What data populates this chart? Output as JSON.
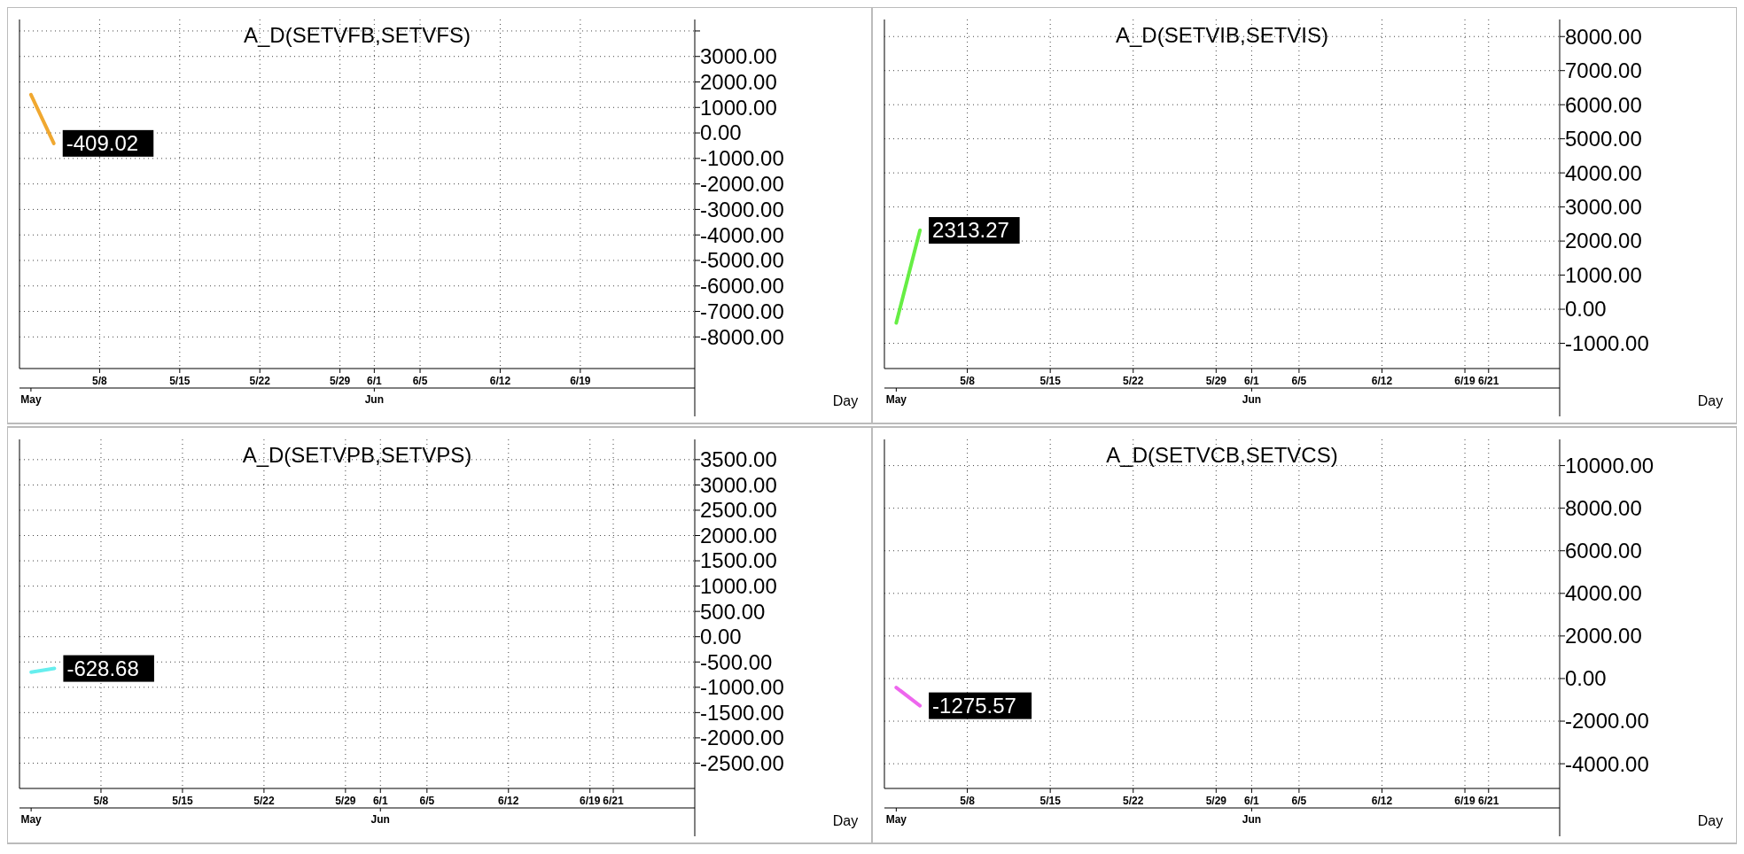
{
  "chart_data": [
    {
      "type": "line",
      "title": "A_D(SETVFB,SETVFS)",
      "xlabel": "Day",
      "x": [
        "--05-02",
        "--05-04"
      ],
      "series": [
        {
          "color": "#f0a830",
          "values": [
            1500,
            -409.02
          ]
        }
      ],
      "xlim": [
        "--05-01",
        "--06-29"
      ],
      "xticks": [
        {
          "value": "--05-08",
          "label": "5/8"
        },
        {
          "value": "--05-15",
          "label": "5/15"
        },
        {
          "value": "--05-22",
          "label": "5/22"
        },
        {
          "value": "--05-29",
          "label": "5/29"
        },
        {
          "value": "--06-01",
          "label": "6/1"
        },
        {
          "value": "--06-05",
          "label": "6/5"
        },
        {
          "value": "--06-12",
          "label": "6/12"
        },
        {
          "value": "--06-19",
          "label": "6/19"
        }
      ],
      "x2lim": [
        "--05-01",
        "--06-29"
      ],
      "x2ticks": [
        {
          "value": "--05-02",
          "label": "May"
        },
        {
          "value": "--06-01",
          "label": "Jun"
        }
      ],
      "ylim": [
        -9240,
        4450
      ],
      "yticks": [
        {
          "value": 4000,
          "label": null
        },
        {
          "value": 3000,
          "label": "3000.00"
        },
        {
          "value": 2000,
          "label": "2000.00"
        },
        {
          "value": 1000,
          "label": "1000.00"
        },
        {
          "value": 0,
          "label": "0.00"
        },
        {
          "value": -1000,
          "label": "-1000.00"
        },
        {
          "value": -2000,
          "label": "-2000.00"
        },
        {
          "value": -3000,
          "label": "-3000.00"
        },
        {
          "value": -4000,
          "label": "-4000.00"
        },
        {
          "value": -5000,
          "label": "-5000.00"
        },
        {
          "value": -6000,
          "label": "-6000.00"
        },
        {
          "value": -7000,
          "label": "-7000.00"
        },
        {
          "value": -8000,
          "label": "-8000.00"
        }
      ],
      "grid": true,
      "annotations": [
        {
          "text": "-409.02",
          "x": "--05-04",
          "y": -409.02
        }
      ]
    },
    {
      "type": "line",
      "title": "A_D(SETVIB,SETVIS)",
      "xlabel": "Day",
      "x": [
        "--05-02",
        "--05-04"
      ],
      "series": [
        {
          "color": "#66ee44",
          "values": [
            -400,
            2313.27
          ]
        }
      ],
      "xlim": [
        "--05-01",
        "--06-27"
      ],
      "xticks": [
        {
          "value": "--05-08",
          "label": "5/8"
        },
        {
          "value": "--05-15",
          "label": "5/15"
        },
        {
          "value": "--05-22",
          "label": "5/22"
        },
        {
          "value": "--05-29",
          "label": "5/29"
        },
        {
          "value": "--06-01",
          "label": "6/1"
        },
        {
          "value": "--06-05",
          "label": "6/5"
        },
        {
          "value": "--06-12",
          "label": "6/12"
        },
        {
          "value": "--06-19",
          "label": "6/19"
        },
        {
          "value": "--06-21",
          "label": "6/21"
        }
      ],
      "x2lim": [
        "--05-01",
        "--06-27"
      ],
      "x2ticks": [
        {
          "value": "--05-02",
          "label": "May"
        },
        {
          "value": "--06-01",
          "label": "Jun"
        }
      ],
      "ylim": [
        -1740,
        8500
      ],
      "yticks": [
        {
          "value": 8000,
          "label": "8000.00"
        },
        {
          "value": 7000,
          "label": "7000.00"
        },
        {
          "value": 6000,
          "label": "6000.00"
        },
        {
          "value": 5000,
          "label": "5000.00"
        },
        {
          "value": 4000,
          "label": "4000.00"
        },
        {
          "value": 3000,
          "label": "3000.00"
        },
        {
          "value": 2000,
          "label": "2000.00"
        },
        {
          "value": 1000,
          "label": "1000.00"
        },
        {
          "value": 0,
          "label": "0.00"
        },
        {
          "value": -1000,
          "label": "-1000.00"
        }
      ],
      "grid": true,
      "annotations": [
        {
          "text": "2313.27",
          "x": "--05-04",
          "y": 2313.27
        }
      ]
    },
    {
      "type": "line",
      "title": "A_D(SETVPB,SETVPS)",
      "xlabel": "Day",
      "x": [
        "--05-02",
        "--05-04"
      ],
      "series": [
        {
          "color": "#66eeee",
          "values": [
            -700,
            -628.68
          ]
        }
      ],
      "xlim": [
        "--05-01",
        "--06-28"
      ],
      "xticks": [
        {
          "value": "--05-08",
          "label": "5/8"
        },
        {
          "value": "--05-15",
          "label": "5/15"
        },
        {
          "value": "--05-22",
          "label": "5/22"
        },
        {
          "value": "--05-29",
          "label": "5/29"
        },
        {
          "value": "--06-01",
          "label": "6/1"
        },
        {
          "value": "--06-05",
          "label": "6/5"
        },
        {
          "value": "--06-12",
          "label": "6/12"
        },
        {
          "value": "--06-19",
          "label": "6/19"
        },
        {
          "value": "--06-21",
          "label": "6/21"
        }
      ],
      "x2lim": [
        "--05-01",
        "--06-28"
      ],
      "x2ticks": [
        {
          "value": "--05-02",
          "label": "May"
        },
        {
          "value": "--06-01",
          "label": "Jun"
        }
      ],
      "ylim": [
        -3000,
        3900
      ],
      "yticks": [
        {
          "value": 3500,
          "label": "3500.00"
        },
        {
          "value": 3000,
          "label": "3000.00"
        },
        {
          "value": 2500,
          "label": "2500.00"
        },
        {
          "value": 2000,
          "label": "2000.00"
        },
        {
          "value": 1500,
          "label": "1500.00"
        },
        {
          "value": 1000,
          "label": "1000.00"
        },
        {
          "value": 500,
          "label": "500.00"
        },
        {
          "value": 0,
          "label": "0.00"
        },
        {
          "value": -500,
          "label": "-500.00"
        },
        {
          "value": -1000,
          "label": "-1000.00"
        },
        {
          "value": -1500,
          "label": "-1500.00"
        },
        {
          "value": -2000,
          "label": "-2000.00"
        },
        {
          "value": -2500,
          "label": "-2500.00"
        }
      ],
      "grid": true,
      "annotations": [
        {
          "text": "-628.68",
          "x": "--05-04",
          "y": -628.68
        }
      ]
    },
    {
      "type": "line",
      "title": "A_D(SETVCB,SETVCS)",
      "xlabel": "Day",
      "x": [
        "--05-02",
        "--05-04"
      ],
      "series": [
        {
          "color": "#ee66ee",
          "values": [
            -420,
            -1275.57
          ]
        }
      ],
      "xlim": [
        "--05-01",
        "--06-27"
      ],
      "xticks": [
        {
          "value": "--05-08",
          "label": "5/8"
        },
        {
          "value": "--05-15",
          "label": "5/15"
        },
        {
          "value": "--05-22",
          "label": "5/22"
        },
        {
          "value": "--05-29",
          "label": "5/29"
        },
        {
          "value": "--06-01",
          "label": "6/1"
        },
        {
          "value": "--06-05",
          "label": "6/5"
        },
        {
          "value": "--06-12",
          "label": "6/12"
        },
        {
          "value": "--06-19",
          "label": "6/19"
        },
        {
          "value": "--06-21",
          "label": "6/21"
        }
      ],
      "x2lim": [
        "--05-01",
        "--06-27"
      ],
      "x2ticks": [
        {
          "value": "--05-02",
          "label": "May"
        },
        {
          "value": "--06-01",
          "label": "Jun"
        }
      ],
      "ylim": [
        -5160,
        11230
      ],
      "yticks": [
        {
          "value": 10000,
          "label": "10000.00"
        },
        {
          "value": 8000,
          "label": "8000.00"
        },
        {
          "value": 6000,
          "label": "6000.00"
        },
        {
          "value": 4000,
          "label": "4000.00"
        },
        {
          "value": 2000,
          "label": "2000.00"
        },
        {
          "value": 0,
          "label": "0.00"
        },
        {
          "value": -2000,
          "label": "-2000.00"
        },
        {
          "value": -4000,
          "label": "-4000.00"
        }
      ],
      "grid": true,
      "annotations": [
        {
          "text": "-1275.57",
          "x": "--05-04",
          "y": -1275.57
        }
      ]
    }
  ]
}
